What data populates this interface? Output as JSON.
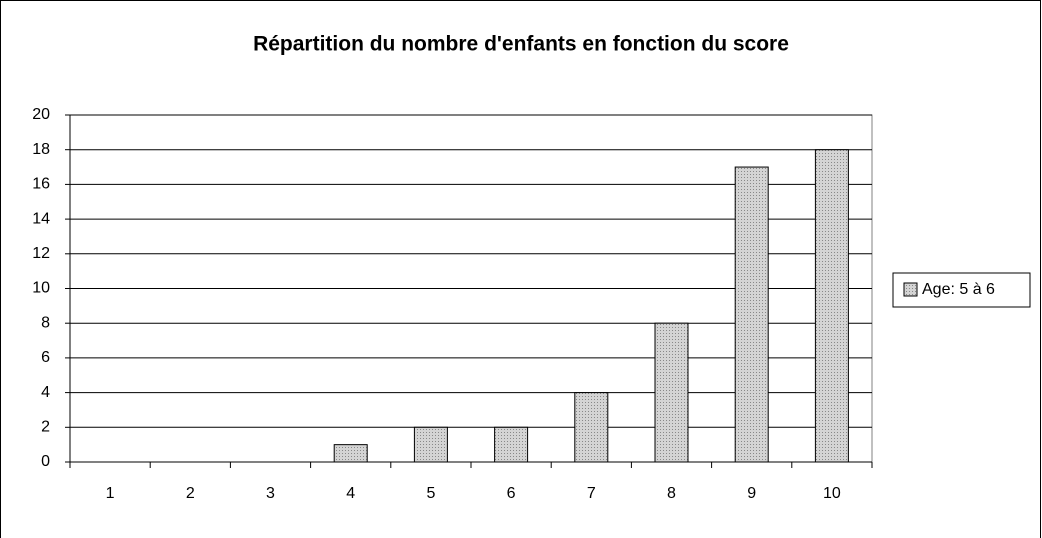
{
  "chart_data": {
    "type": "bar",
    "title": "Répartition du nombre d'enfants en fonction du score",
    "categories": [
      "1",
      "2",
      "3",
      "4",
      "5",
      "6",
      "7",
      "8",
      "9",
      "10"
    ],
    "series": [
      {
        "name": "Age: 5 à 6",
        "color": "#d4d4d4",
        "values": [
          0,
          0,
          0,
          1,
          2,
          2,
          4,
          8,
          17,
          18
        ]
      }
    ],
    "ylim": [
      0,
      20
    ],
    "yticks": [
      0,
      2,
      4,
      6,
      8,
      10,
      12,
      14,
      16,
      18,
      20
    ],
    "grid": true,
    "legend": "right"
  }
}
